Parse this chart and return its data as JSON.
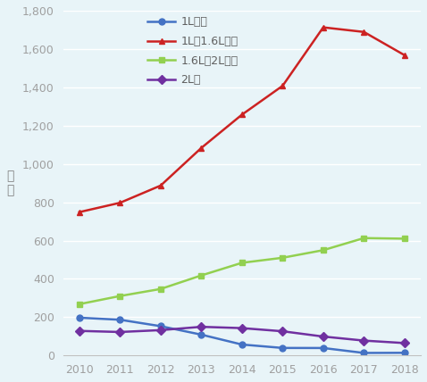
{
  "years": [
    2010,
    2011,
    2012,
    2013,
    2014,
    2015,
    2016,
    2017,
    2018
  ],
  "series": [
    {
      "label": "1L以下",
      "color": "#4472C4",
      "marker": "o",
      "values": [
        197.4316,
        186.7467,
        153.2502,
        108.9934,
        57.372,
        39.5357,
        39.2329,
        13.4808,
        14.1265
      ]
    },
    {
      "label": "1L超1.6L以下",
      "color": "#CC2222",
      "marker": "^",
      "values": [
        748.5959,
        797.1714,
        887.0756,
        1083.368,
        1257.2301,
        1407.6233,
        1712.851,
        1688.918,
        1567.6929
      ]
    },
    {
      "label": "1.6L超2L以下",
      "color": "#92D050",
      "marker": "s",
      "values": [
        268.1804,
        310.6508,
        347.3904,
        418.0162,
        483.9453,
        510.2818,
        549.9396,
        612.9913,
        609.8658
      ]
    },
    {
      "label": "2L超",
      "color": "#7030A0",
      "marker": "D",
      "values": [
        128.5604,
        122.8118,
        132.59,
        149.8468,
        143.0965,
        126.5992,
        99.0432,
        77.9467,
        65.0376
      ]
    }
  ],
  "ylabel": "万\n台",
  "ylim": [
    0,
    1800
  ],
  "yticks": [
    0,
    200,
    400,
    600,
    800,
    1000,
    1200,
    1400,
    1600,
    1800
  ],
  "background_color": "#E8F4F8",
  "legend_loc": "upper left",
  "title": "",
  "tick_color": "#A0A0A0",
  "axis_label_color": "#808080"
}
